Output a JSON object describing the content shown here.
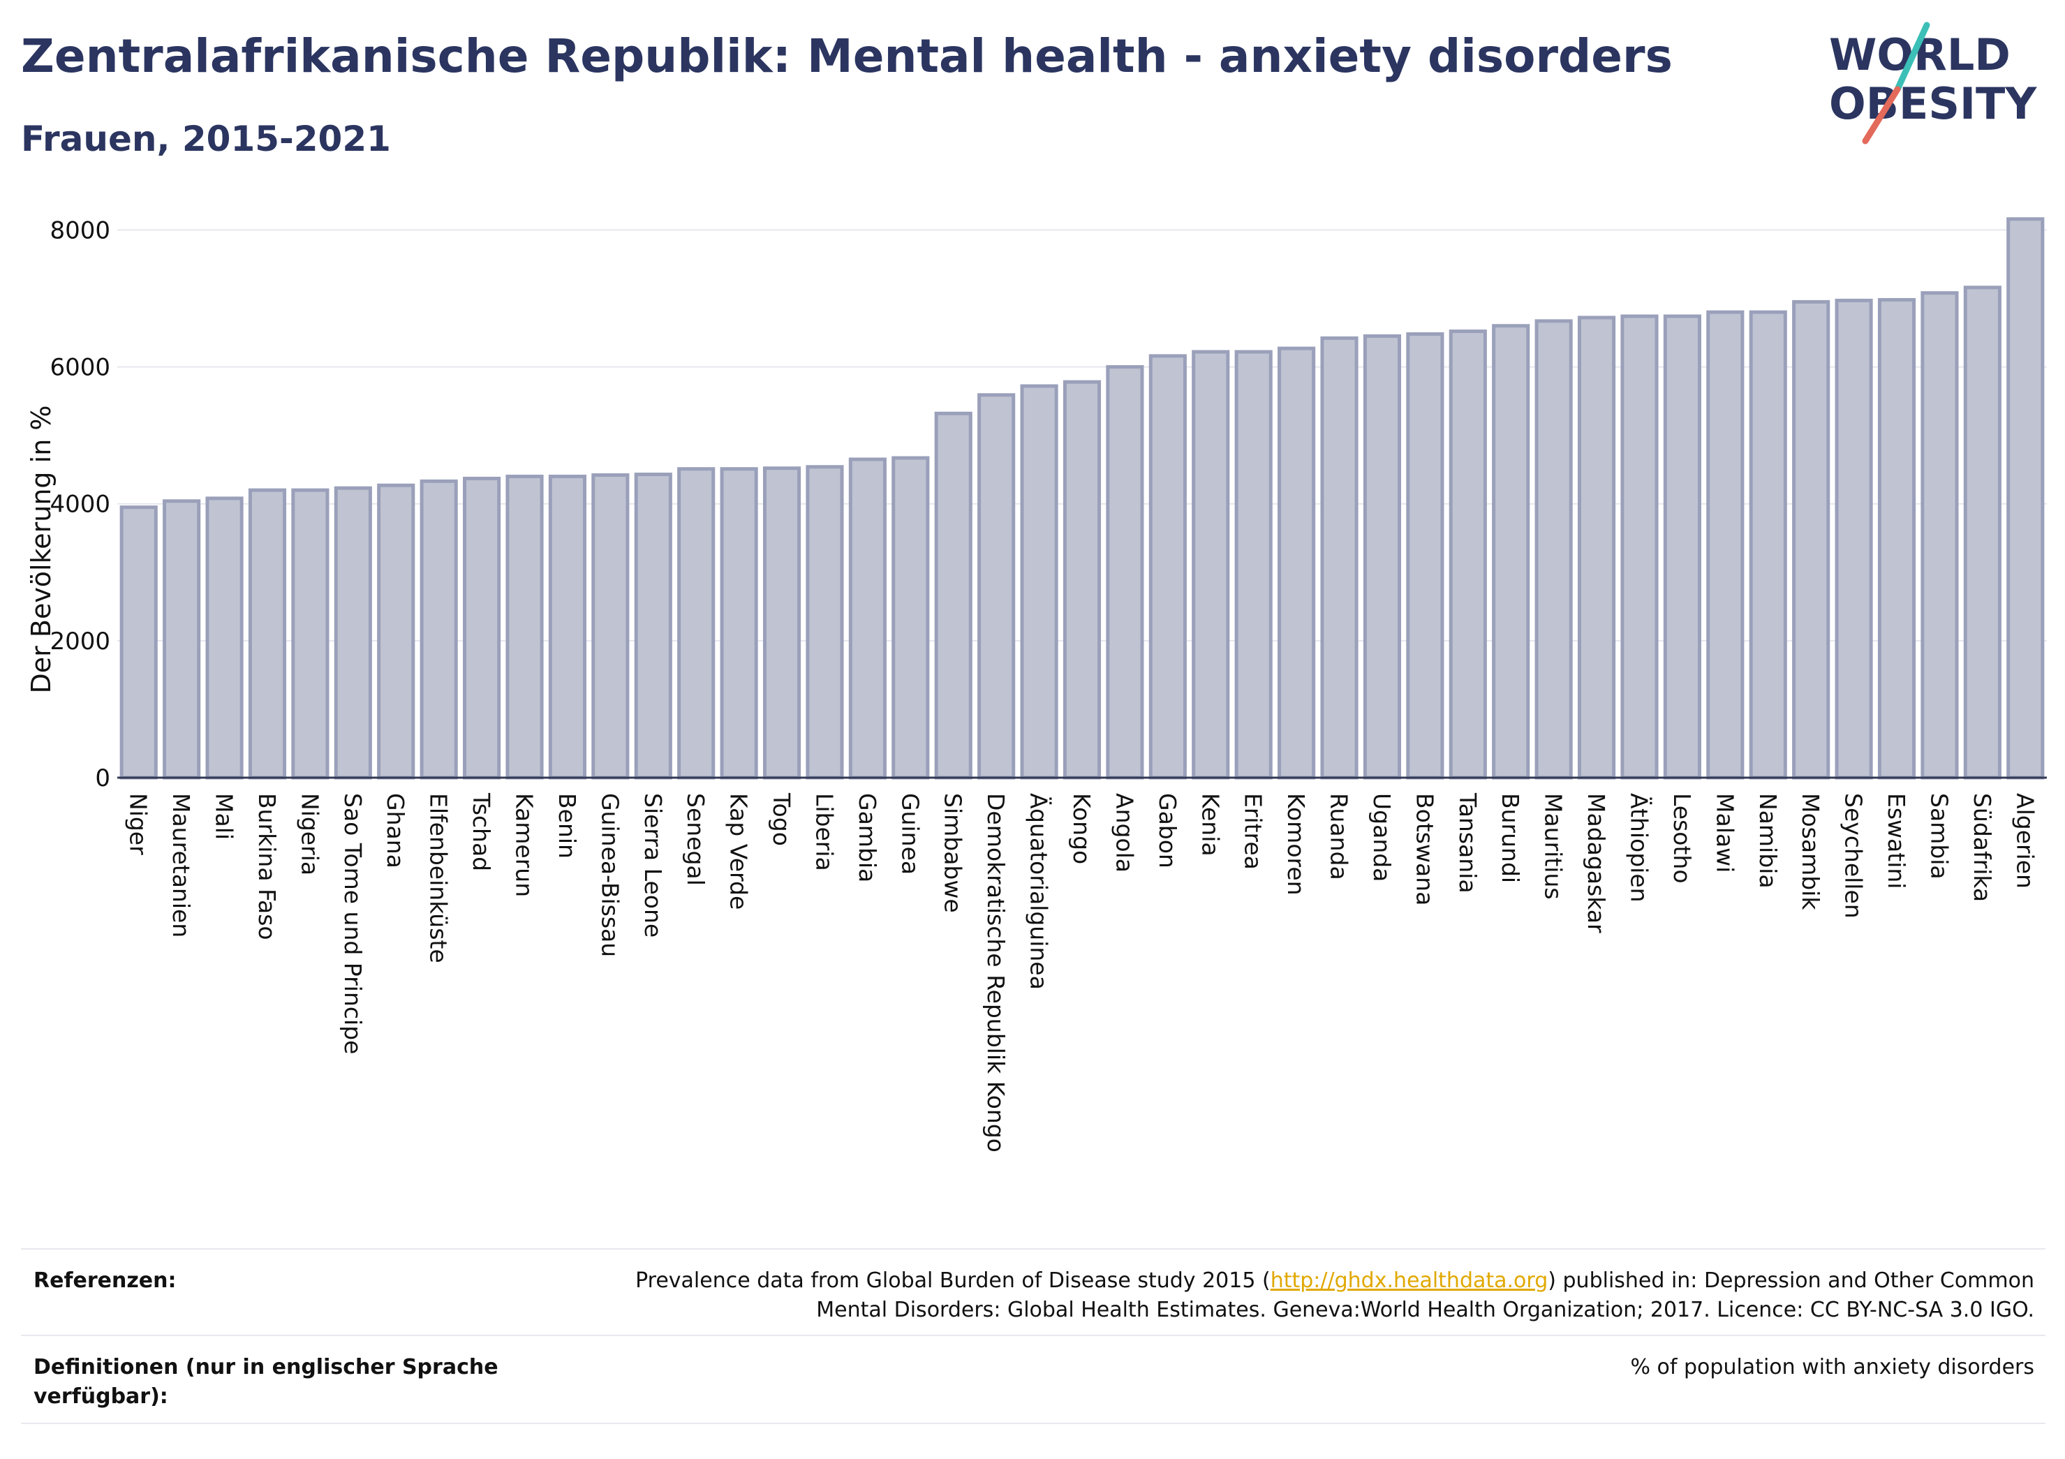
{
  "title": "Zentralafrikanische Republik: Mental health - anxiety disorders",
  "subtitle": "Frauen, 2015-2021",
  "logo": {
    "line1": "WORLD",
    "line2": "OBESITY"
  },
  "colors": {
    "bar_fill": "#c0c4d2",
    "bar_stroke": "#9aa0ba",
    "title": "#2b3560",
    "logo_teal": "#3bbfb6",
    "logo_red": "#e36a5a",
    "link": "#e0a800"
  },
  "chart_data": {
    "type": "bar",
    "ylabel": "Der Bevölkerung in %",
    "ylim": [
      0,
      8300
    ],
    "yticks": [
      0,
      2000,
      4000,
      6000,
      8000
    ],
    "grid": true,
    "categories": [
      "Niger",
      "Mauretanien",
      "Mali",
      "Burkina Faso",
      "Nigeria",
      "Sao Tome und Principe",
      "Ghana",
      "Elfenbeinküste",
      "Tschad",
      "Kamerun",
      "Benin",
      "Guinea-Bissau",
      "Sierra Leone",
      "Senegal",
      "Kap Verde",
      "Togo",
      "Liberia",
      "Gambia",
      "Guinea",
      "Simbabwe",
      "Demokratische Republik Kongo",
      "Äquatorialguinea",
      "Kongo",
      "Angola",
      "Gabon",
      "Kenia",
      "Eritrea",
      "Komoren",
      "Ruanda",
      "Uganda",
      "Botswana",
      "Tansania",
      "Burundi",
      "Mauritius",
      "Madagaskar",
      "Äthiopien",
      "Lesotho",
      "Malawi",
      "Namibia",
      "Mosambik",
      "Seychellen",
      "Eswatini",
      "Sambia",
      "Südafrika",
      "Algerien"
    ],
    "values": [
      3950,
      4040,
      4080,
      4200,
      4200,
      4230,
      4270,
      4330,
      4370,
      4400,
      4400,
      4420,
      4430,
      4510,
      4510,
      4520,
      4540,
      4650,
      4670,
      5320,
      5590,
      5720,
      5780,
      6000,
      6160,
      6220,
      6220,
      6270,
      6420,
      6450,
      6480,
      6520,
      6600,
      6670,
      6720,
      6740,
      6740,
      6800,
      6800,
      6950,
      6970,
      6980,
      7080,
      7160,
      8160
    ]
  },
  "footer": {
    "references_label": "Referenzen:",
    "references_text_before": "Prevalence data from Global Burden of Disease study 2015 (",
    "references_link": "http://ghdx.healthdata.org",
    "references_text_after": ") published in: Depression and Other Common",
    "references_line2": "Mental Disorders: Global Health Estimates. Geneva:World Health Organization; 2017. Licence: CC BY-NC-SA 3.0 IGO.",
    "definitions_label_line1": "Definitionen (nur in englischer Sprache",
    "definitions_label_line2": "verfügbar):",
    "definitions_text": "% of population with anxiety disorders"
  }
}
